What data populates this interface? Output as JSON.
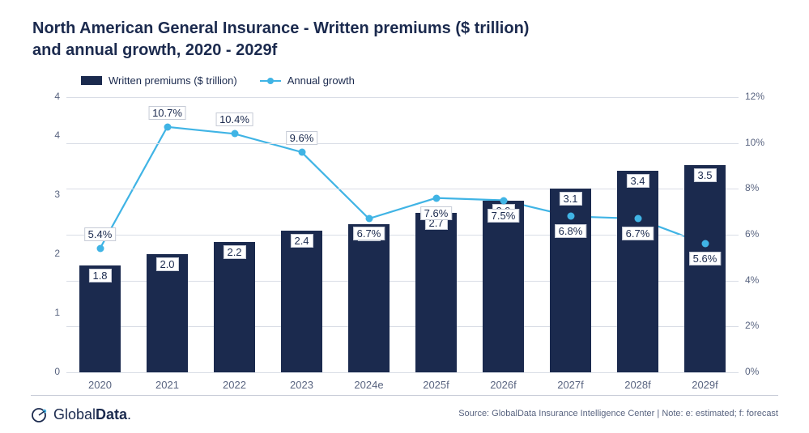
{
  "title_line1": "North American General Insurance - Written premiums ($ trillion)",
  "title_line2": "and annual growth, 2020 - 2029f",
  "legend": {
    "bars": "Written premiums ($ trillion)",
    "line": "Annual growth"
  },
  "colors": {
    "bar": "#1b2a4e",
    "line": "#40b4e5",
    "marker": "#40b4e5",
    "grid": "#d9dde6",
    "axis_text": "#596480",
    "title_text": "#1b2a4e",
    "background": "#ffffff",
    "label_border": "#c6cbd6"
  },
  "chart": {
    "type": "bar+line",
    "categories": [
      "2020",
      "2021",
      "2022",
      "2023",
      "2024e",
      "2025f",
      "2026f",
      "2027f",
      "2028f",
      "2029f"
    ],
    "bar_values": [
      1.8,
      2.0,
      2.2,
      2.4,
      2.5,
      2.7,
      2.9,
      3.1,
      3.4,
      3.5
    ],
    "bar_value_labels": [
      "1.8",
      "2.0",
      "2.2",
      "2.4",
      "2.5",
      "2.7",
      "2.9",
      "3.1",
      "3.4",
      "3.5"
    ],
    "line_values": [
      5.4,
      10.7,
      10.4,
      9.6,
      6.7,
      7.6,
      7.5,
      6.8,
      6.7,
      5.6
    ],
    "line_value_labels": [
      "5.4%",
      "10.7%",
      "10.4%",
      "9.6%",
      "6.7%",
      "7.6%",
      "7.5%",
      "6.8%",
      "6.7%",
      "5.6%"
    ],
    "line_label_side": [
      "above",
      "above",
      "above",
      "above",
      "below",
      "below",
      "below",
      "below",
      "below",
      "below"
    ],
    "y_left": {
      "min": 0,
      "max": 4,
      "ticks": [
        0,
        1,
        2,
        3,
        4,
        4
      ],
      "tick_labels": [
        "0",
        "1",
        "2",
        "3",
        "4",
        "4"
      ]
    },
    "y_right": {
      "min": 0,
      "max": 12,
      "ticks": [
        0,
        2,
        4,
        6,
        8,
        10,
        12
      ],
      "tick_labels": [
        "0%",
        "2%",
        "4%",
        "6%",
        "8%",
        "10%",
        "12%"
      ]
    },
    "bar_width_ratio": 0.62,
    "title_fontsize": 20,
    "axis_fontsize": 12,
    "label_fontsize": 13,
    "line_width": 2.2,
    "marker_size": 9
  },
  "footer": {
    "logo_brand_a": "Global",
    "logo_brand_b": "Data",
    "logo_dot": ".",
    "source": "Source: GlobalData Insurance Intelligence Center | Note: e: estimated; f: forecast"
  }
}
